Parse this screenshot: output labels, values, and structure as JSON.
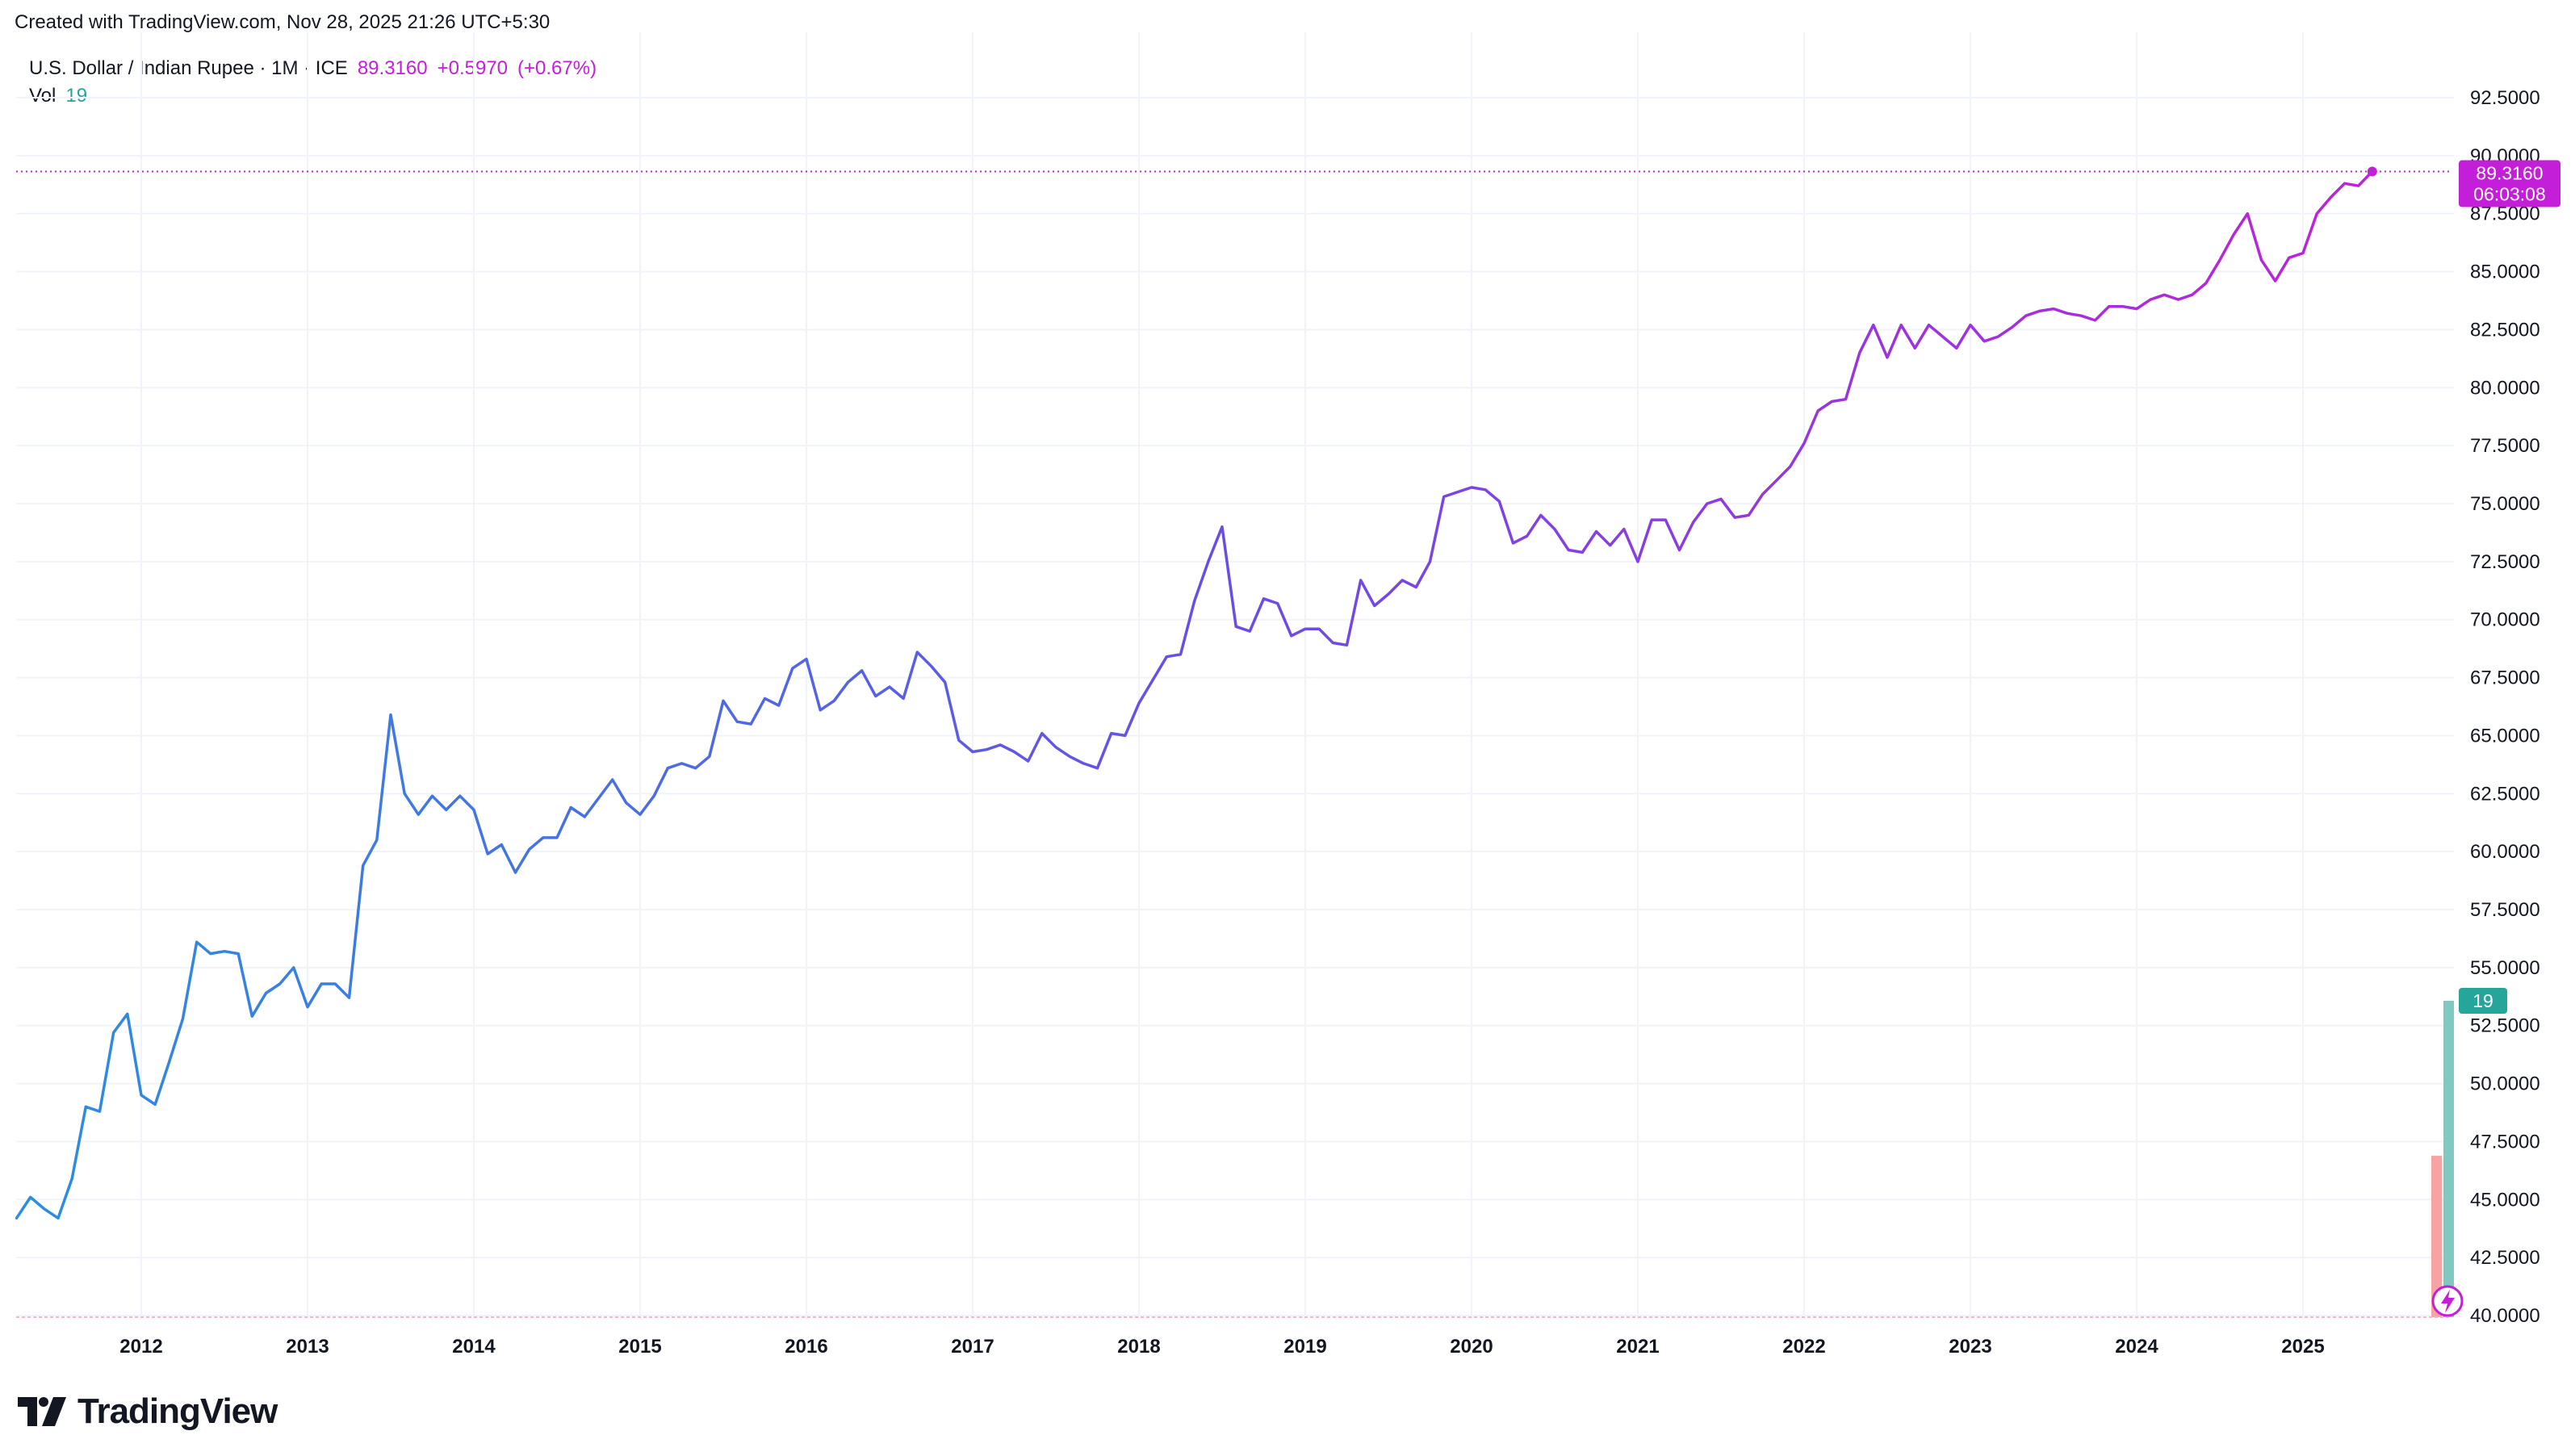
{
  "header": {
    "created_text": "Created with TradingView.com, Nov 28, 2025 21:26 UTC+5:30"
  },
  "legend": {
    "symbol": "U.S. Dollar / Indian Rupee · 1M · ICE",
    "last": "89.3160",
    "change": "+0.5970",
    "change_pct": "(+0.67%)",
    "vol_label": "Vol",
    "vol_value": "19"
  },
  "price_label": {
    "value": "89.3160",
    "countdown": "06:03:08"
  },
  "vol_label_box": "19",
  "logo": {
    "text": "TradingView"
  },
  "colors": {
    "line_start": "#2a8fe0",
    "line_mid": "#6a4de6",
    "line_end": "#c41fd8",
    "price_tag": "#c41fd8",
    "volume_up": "#80c9c0",
    "volume_down": "#f5a3a3",
    "volume_tag": "#26a69a",
    "grid": "#f0f3fa"
  },
  "chart_data": {
    "type": "line",
    "ylim": [
      40,
      92.5
    ],
    "ytick_labels": [
      "40.0000",
      "42.5000",
      "45.0000",
      "47.5000",
      "50.0000",
      "52.5000",
      "55.0000",
      "57.5000",
      "60.0000",
      "62.5000",
      "65.0000",
      "67.5000",
      "70.0000",
      "72.5000",
      "75.0000",
      "77.5000",
      "80.0000",
      "82.5000",
      "85.0000",
      "87.5000",
      "90.0000",
      "92.5000"
    ],
    "yticks": [
      40,
      42.5,
      45,
      47.5,
      50,
      52.5,
      55,
      57.5,
      60,
      62.5,
      65,
      67.5,
      70,
      72.5,
      75,
      77.5,
      80,
      82.5,
      85,
      87.5,
      90,
      92.5
    ],
    "xtick_labels": [
      "2012",
      "2013",
      "2014",
      "2015",
      "2016",
      "2017",
      "2018",
      "2019",
      "2020",
      "2021",
      "2022",
      "2023",
      "2024",
      "2025"
    ],
    "xticks": [
      2012,
      2013,
      2014,
      2015,
      2016,
      2017,
      2018,
      2019,
      2020,
      2021,
      2022,
      2023,
      2024,
      2025
    ],
    "x_start": 2011.25,
    "x_step_months": 1,
    "values": [
      44.2,
      45.1,
      44.6,
      44.2,
      45.9,
      49.0,
      48.8,
      52.2,
      53.0,
      49.5,
      49.1,
      50.9,
      52.8,
      56.1,
      55.6,
      55.7,
      55.6,
      52.9,
      53.9,
      54.3,
      55.0,
      53.3,
      54.3,
      54.3,
      53.7,
      59.4,
      60.5,
      65.9,
      62.5,
      61.6,
      62.4,
      61.8,
      62.4,
      61.8,
      59.9,
      60.3,
      59.1,
      60.1,
      60.6,
      60.6,
      61.9,
      61.5,
      62.3,
      63.1,
      62.1,
      61.6,
      62.4,
      63.6,
      63.8,
      63.6,
      64.1,
      66.5,
      65.6,
      65.5,
      66.6,
      66.3,
      67.9,
      68.3,
      66.1,
      66.5,
      67.3,
      67.8,
      66.7,
      67.1,
      66.6,
      68.6,
      68.0,
      67.3,
      64.8,
      64.3,
      64.4,
      64.6,
      64.3,
      63.9,
      65.1,
      64.5,
      64.1,
      63.8,
      63.6,
      65.1,
      65.0,
      66.4,
      67.4,
      68.4,
      68.5,
      70.8,
      72.5,
      74.0,
      69.7,
      69.5,
      70.9,
      70.7,
      69.3,
      69.6,
      69.6,
      69.0,
      68.9,
      71.7,
      70.6,
      71.1,
      71.7,
      71.4,
      72.5,
      75.3,
      75.5,
      75.7,
      75.6,
      75.1,
      73.3,
      73.6,
      74.5,
      73.9,
      73.0,
      72.9,
      73.8,
      73.2,
      73.9,
      72.5,
      74.3,
      74.3,
      73.0,
      74.2,
      75.0,
      75.2,
      74.4,
      74.5,
      75.4,
      76.0,
      76.6,
      77.6,
      79.0,
      79.4,
      79.5,
      81.5,
      82.7,
      81.3,
      82.7,
      81.7,
      82.7,
      82.2,
      81.7,
      82.7,
      82.0,
      82.2,
      82.6,
      83.1,
      83.3,
      83.4,
      83.2,
      83.1,
      82.9,
      83.5,
      83.5,
      83.4,
      83.8,
      84.0,
      83.8,
      84.0,
      84.5,
      85.5,
      86.6,
      87.5,
      85.5,
      84.6,
      85.6,
      85.8,
      87.5,
      88.2,
      88.8,
      88.7,
      89.316
    ],
    "volume_bars": [
      {
        "value_ratio": 0.51,
        "direction": "down"
      },
      {
        "value_ratio": 1.0,
        "direction": "up"
      }
    ]
  }
}
